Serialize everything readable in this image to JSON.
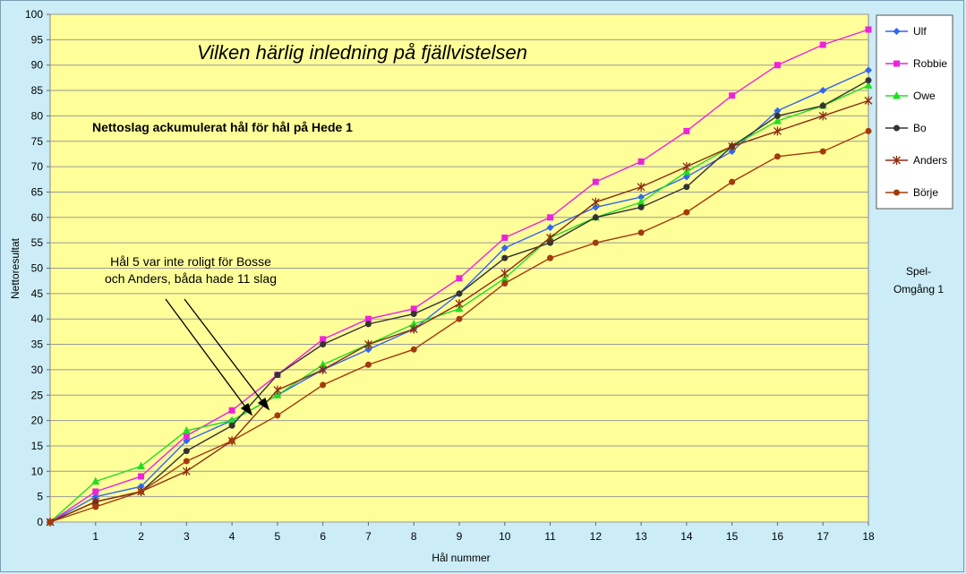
{
  "chart_data": {
    "type": "line",
    "title": "Vilken härlig inledning på fjällvistelsen",
    "subtitle": "Nettoslag ackumulerat hål för hål på Hede 1",
    "xlabel": "Hål nummer",
    "ylabel": "Nettoresultat",
    "xlim": [
      0,
      18
    ],
    "ylim": [
      0,
      100
    ],
    "x_ticks": [
      1,
      2,
      3,
      4,
      5,
      6,
      7,
      8,
      9,
      10,
      11,
      12,
      13,
      14,
      15,
      16,
      17,
      18
    ],
    "y_ticks": [
      0,
      5,
      10,
      15,
      20,
      25,
      30,
      35,
      40,
      45,
      50,
      55,
      60,
      65,
      70,
      75,
      80,
      85,
      90,
      95,
      100
    ],
    "grid": true,
    "legend_position": "right",
    "x": [
      0,
      1,
      2,
      3,
      4,
      5,
      6,
      7,
      8,
      9,
      10,
      11,
      12,
      13,
      14,
      15,
      16,
      17,
      18
    ],
    "series": [
      {
        "name": "Ulf",
        "color": "#3366ee",
        "marker": "diamond",
        "values": [
          0,
          5,
          7,
          16,
          20,
          25,
          30,
          34,
          38,
          45,
          54,
          58,
          62,
          64,
          68,
          73,
          81,
          85,
          89
        ]
      },
      {
        "name": "Robbie",
        "color": "#ee22dd",
        "marker": "square",
        "values": [
          0,
          6,
          9,
          17,
          22,
          29,
          36,
          40,
          42,
          48,
          56,
          60,
          67,
          71,
          77,
          84,
          90,
          94,
          97
        ]
      },
      {
        "name": "Owe",
        "color": "#22dd22",
        "marker": "triangle",
        "values": [
          0,
          8,
          11,
          18,
          20,
          25,
          31,
          35,
          39,
          42,
          48,
          56,
          60,
          63,
          69,
          74,
          79,
          82,
          86
        ]
      },
      {
        "name": "Bo",
        "color": "#333333",
        "marker": "circle",
        "values": [
          0,
          4,
          6,
          14,
          19,
          29,
          35,
          39,
          41,
          45,
          52,
          55,
          60,
          62,
          66,
          74,
          80,
          82,
          87
        ]
      },
      {
        "name": "Anders",
        "color": "#8b2b10",
        "marker": "asterisk",
        "values": [
          0,
          4,
          6,
          10,
          16,
          26,
          30,
          35,
          38,
          43,
          49,
          56,
          63,
          66,
          70,
          74,
          77,
          80,
          83
        ]
      },
      {
        "name": "Börje",
        "color": "#a33a0c",
        "marker": "circle",
        "values": [
          0,
          3,
          6,
          12,
          16,
          21,
          27,
          31,
          34,
          40,
          47,
          52,
          55,
          57,
          61,
          67,
          72,
          73,
          77
        ]
      }
    ],
    "annotation": {
      "line1": "Hål 5 var inte roligt för Bosse",
      "line2": "och Anders, båda hade 11 slag"
    },
    "side_label": {
      "line1": "Spel-",
      "line2": "Omgång 1"
    }
  },
  "colors": {
    "page_bg": "#ccecf7",
    "plot_bg": "#ffff99",
    "legend_bg": "#ffffff"
  }
}
